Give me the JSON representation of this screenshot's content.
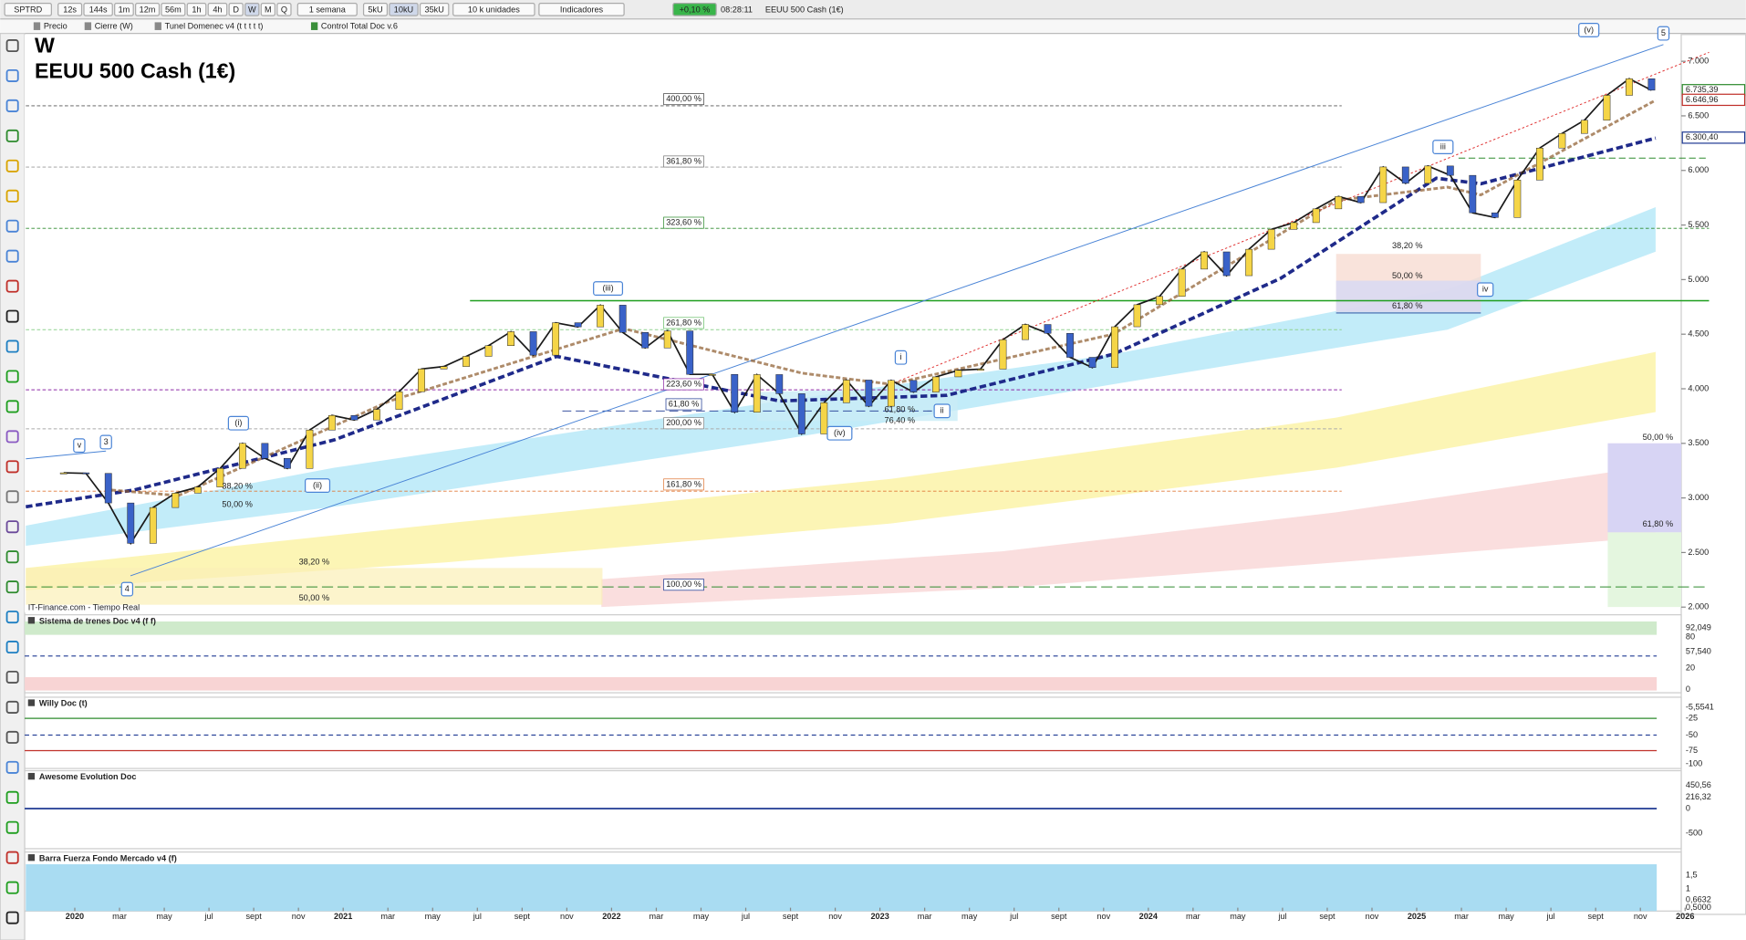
{
  "toolbar": {
    "symbol": "SPTRD",
    "intervals": [
      "12s",
      "144s",
      "1m",
      "12m",
      "56m",
      "1h",
      "4h",
      "D",
      "W",
      "M",
      "Q"
    ],
    "period": "1 semana",
    "units": [
      "5kU",
      "10kU",
      "35kU"
    ],
    "units_menu": "10 k unidades",
    "indicators": "Indicadores",
    "change": "+0,10 %",
    "time": "08:28:11",
    "instrument": "EEUU 500 Cash (1€)"
  },
  "legend_bar": [
    "Precio",
    "Cierre (W)",
    "Tunel Domenec v4 (t t t t t)",
    "Control Total Doc v.6"
  ],
  "chart": {
    "type": "line",
    "timeframe": "W",
    "title": "EEUU 500 Cash (1€)",
    "source": "IT-Finance.com - Tiempo Real",
    "color": "#1a1a1a",
    "x": [
      "2019-12",
      "2020-01",
      "2020-02",
      "2020-03",
      "2020-04",
      "2020-05",
      "2020-06",
      "2020-07",
      "2020-08",
      "2020-09",
      "2020-10",
      "2020-11",
      "2020-12",
      "2021-01",
      "2021-02",
      "2021-03",
      "2021-04",
      "2021-05",
      "2021-06",
      "2021-07",
      "2021-08",
      "2021-09",
      "2021-10",
      "2021-11",
      "2021-12",
      "2022-01",
      "2022-02",
      "2022-03",
      "2022-04",
      "2022-05",
      "2022-06",
      "2022-07",
      "2022-08",
      "2022-09",
      "2022-10",
      "2022-11",
      "2022-12",
      "2023-01",
      "2023-02",
      "2023-03",
      "2023-04",
      "2023-05",
      "2023-06",
      "2023-07",
      "2023-08",
      "2023-09",
      "2023-10",
      "2023-11",
      "2023-12",
      "2024-01",
      "2024-02",
      "2024-03",
      "2024-04",
      "2024-05",
      "2024-06",
      "2024-07",
      "2024-08",
      "2024-09",
      "2024-10",
      "2024-11",
      "2024-12",
      "2025-01",
      "2025-02",
      "2025-03",
      "2025-04",
      "2025-05",
      "2025-06",
      "2025-07",
      "2025-08",
      "2025-09",
      "2025-10",
      "2025-11"
    ],
    "values": [
      3230,
      3225,
      2954,
      2584,
      2912,
      3044,
      3100,
      3271,
      3500,
      3363,
      3270,
      3622,
      3756,
      3714,
      3811,
      3973,
      4181,
      4204,
      4297,
      4395,
      4523,
      4308,
      4605,
      4567,
      4766,
      4516,
      4374,
      4530,
      4132,
      4132,
      3785,
      4130,
      3955,
      3586,
      3872,
      4080,
      3840,
      4077,
      3970,
      4109,
      4169,
      4180,
      4450,
      4589,
      4508,
      4288,
      4194,
      4568,
      4770,
      4846,
      5096,
      5254,
      5036,
      5278,
      5460,
      5522,
      5648,
      5762,
      5705,
      6032,
      5882,
      6041,
      5955,
      5612,
      5569,
      5912,
      6205,
      6339,
      6460,
      6688,
      6840,
      6735
    ],
    "ylim": [
      1950,
      7245
    ],
    "yticks": [
      {
        "value": 2000,
        "label": "2.000"
      },
      {
        "value": 2500,
        "label": "2.500"
      },
      {
        "value": 3000,
        "label": "3.000"
      },
      {
        "value": 3500,
        "label": "3.500"
      },
      {
        "value": 4000,
        "label": "4.000"
      },
      {
        "value": 4500,
        "label": "4.500"
      },
      {
        "value": 5000,
        "label": "5.000"
      },
      {
        "value": 5500,
        "label": "5.500"
      },
      {
        "value": 6000,
        "label": "6.000"
      },
      {
        "value": 6500,
        "label": "6.500"
      },
      {
        "value": 7000,
        "label": "7.000"
      }
    ],
    "price_markers": [
      {
        "value": 6735.39,
        "label": "6.735,39",
        "color": "#2e8b2e"
      },
      {
        "value": 6646.96,
        "label": "6.646,96",
        "color": "#c0302a"
      },
      {
        "value": 6300.4,
        "label": "6.300,40",
        "color": "#1f3a93"
      }
    ],
    "fib_labels": [
      "400,00 %",
      "361,80 %",
      "323,60 %",
      "261,80 %",
      "223,60 %",
      "61,80 %",
      "200,00 %",
      "161,80 %",
      "100,00 %",
      "38,20 %",
      "50,00 %",
      "38,20 %",
      "50,00 %",
      "61,80 %",
      "76,40 %",
      "38,20 %",
      "50,00 %",
      "61,80 %",
      "50,00 %",
      "61,80 %"
    ],
    "wave_labels": [
      "v",
      "3",
      "4",
      "(i)",
      "(ii)",
      "(iii)",
      "(iv)",
      "i",
      "ii",
      "iii",
      "iv",
      "(v)",
      "5"
    ],
    "x_axis_labels": [
      "2020",
      "mar",
      "may",
      "jul",
      "sept",
      "nov",
      "2021",
      "mar",
      "may",
      "jul",
      "sept",
      "nov",
      "2022",
      "mar",
      "may",
      "jul",
      "sept",
      "nov",
      "2023",
      "mar",
      "may",
      "jul",
      "sept",
      "nov",
      "2024",
      "mar",
      "may",
      "jul",
      "sept",
      "nov",
      "2025",
      "mar",
      "may",
      "jul",
      "sept",
      "nov",
      "2026"
    ]
  },
  "panes": [
    {
      "title": "Sistema de trenes Doc v4 (f f)",
      "axis_labels": [
        "92,049",
        "80",
        "57,540",
        "20",
        "0"
      ]
    },
    {
      "title": "Willy Doc (t)",
      "axis_labels": [
        "-5,5541",
        "-25",
        "-50",
        "-75",
        "-100"
      ]
    },
    {
      "title": "Awesome Evolution Doc",
      "axis_labels": [
        "450,56",
        "216,32",
        "0",
        "-500"
      ]
    },
    {
      "title": "Barra Fuerza Fondo Mercado v4 (f)",
      "axis_labels": [
        "1,5",
        "1",
        "0,6632",
        "0,5000"
      ]
    }
  ]
}
